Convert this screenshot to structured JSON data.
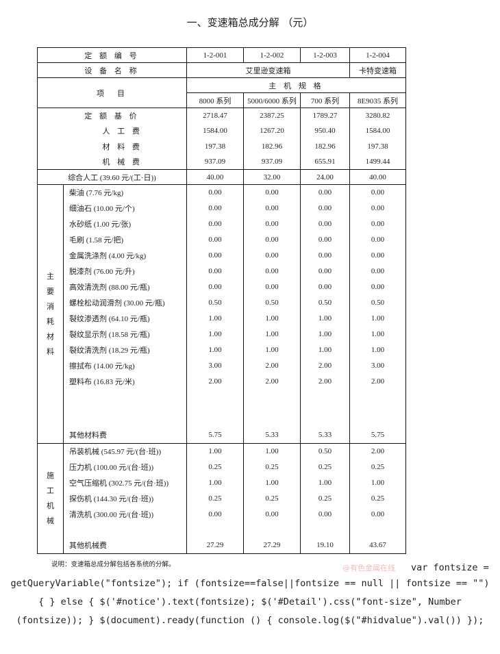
{
  "title": "一、变速箱总成分解 （元）",
  "header": {
    "quota_no_label": "定 额 编 号",
    "quota_nos": [
      "1-2-001",
      "1-2-002",
      "1-2-003",
      "1-2-004"
    ],
    "equipment_label": "设 备 名 称",
    "equipment_names": [
      "艾里逊变速箱",
      "卡特变速箱"
    ],
    "item_label": "项　目",
    "spec_label": "主 机 规 格",
    "specs": [
      "8000 系列",
      "5000/6000 系列",
      "700 系列",
      "8E9035 系列"
    ]
  },
  "costs": [
    {
      "label": "定 额 基 价",
      "values": [
        "2718.47",
        "2387.25",
        "1789.27",
        "3280.82"
      ]
    },
    {
      "label": "人 工 费",
      "values": [
        "1584.00",
        "1267.20",
        "950.40",
        "1584.00"
      ]
    },
    {
      "label": "材 料 费",
      "values": [
        "197.38",
        "182.96",
        "182.96",
        "197.38"
      ]
    },
    {
      "label": "机 械 费",
      "values": [
        "937.09",
        "937.09",
        "655.91",
        "1499.44"
      ]
    }
  ],
  "labor": {
    "label": "综合人工 (39.60 元/(工·日))",
    "values": [
      "40.00",
      "32.00",
      "24.00",
      "40.00"
    ]
  },
  "materials": {
    "category": "主要消耗材料",
    "items": [
      {
        "label": "柴油 (7.76 元/kg)",
        "values": [
          "0.00",
          "0.00",
          "0.00",
          "0.00"
        ]
      },
      {
        "label": "细油石 (10.00 元/个)",
        "values": [
          "0.00",
          "0.00",
          "0.00",
          "0.00"
        ]
      },
      {
        "label": "水砂纸 (1.00 元/张)",
        "values": [
          "0.00",
          "0.00",
          "0.00",
          "0.00"
        ]
      },
      {
        "label": "毛刷 (1.58 元/把)",
        "values": [
          "0.00",
          "0.00",
          "0.00",
          "0.00"
        ]
      },
      {
        "label": "金属洗涤剂 (4.00 元/kg)",
        "values": [
          "0.00",
          "0.00",
          "0.00",
          "0.00"
        ]
      },
      {
        "label": "脱漆剂 (76.00 元/升)",
        "values": [
          "0.00",
          "0.00",
          "0.00",
          "0.00"
        ]
      },
      {
        "label": "高效清洗剂 (88.00 元/瓶)",
        "values": [
          "0.00",
          "0.00",
          "0.00",
          "0.00"
        ]
      },
      {
        "label": "螺栓松动润滑剂 (30.00 元/瓶)",
        "values": [
          "0.50",
          "0.50",
          "0.50",
          "0.50"
        ]
      },
      {
        "label": "裂纹渗透剂 (64.10 元/瓶)",
        "values": [
          "1.00",
          "1.00",
          "1.00",
          "1.00"
        ]
      },
      {
        "label": "裂纹显示剂 (18.58 元/瓶)",
        "values": [
          "1.00",
          "1.00",
          "1.00",
          "1.00"
        ]
      },
      {
        "label": "裂纹清洗剂 (18.29 元/瓶)",
        "values": [
          "1.00",
          "1.00",
          "1.00",
          "1.00"
        ]
      },
      {
        "label": "擦拭布 (14.00 元/kg)",
        "values": [
          "3.00",
          "2.00",
          "2.00",
          "3.00"
        ]
      },
      {
        "label": "塑料布 (16.83 元/米)",
        "values": [
          "2.00",
          "2.00",
          "2.00",
          "2.00"
        ]
      }
    ],
    "other": {
      "label": "其他材料费",
      "values": [
        "5.75",
        "5.33",
        "5.33",
        "5.75"
      ]
    }
  },
  "machinery": {
    "category": "施工机械",
    "items": [
      {
        "label": "吊装机械 (545.97 元/(台·班))",
        "values": [
          "1.00",
          "1.00",
          "0.50",
          "2.00"
        ]
      },
      {
        "label": "压力机 (100.00 元/(台·班))",
        "values": [
          "0.25",
          "0.25",
          "0.25",
          "0.25"
        ]
      },
      {
        "label": "空气压缩机 (302.75 元/(台·班))",
        "values": [
          "1.00",
          "1.00",
          "1.00",
          "1.00"
        ]
      },
      {
        "label": "探伤机 (144.30 元/(台·班))",
        "values": [
          "0.25",
          "0.25",
          "0.25",
          "0.25"
        ]
      },
      {
        "label": "清洗机 (300.00 元/(台·班))",
        "values": [
          "0.00",
          "0.00",
          "0.00",
          "0.00"
        ]
      }
    ],
    "other": {
      "label": "其他机械费",
      "values": [
        "27.29",
        "27.29",
        "19.10",
        "43.67"
      ]
    }
  },
  "note": "说明：变速箱总成分解包括各系统的分解。",
  "watermark": "@有色金属在线",
  "code_lines": [
    "var fontsize =",
    "getQueryVariable(\"fontsize\"); if (fontsize==false||fontsize == null || fontsize == \"\")",
    "{ } else { $('#notice').text(fontsize); $('#Detail').css(\"font-size\", Number",
    "(fontsize)); } $(document).ready(function () { console.log($(\"#hidvalue\").val()) });"
  ]
}
